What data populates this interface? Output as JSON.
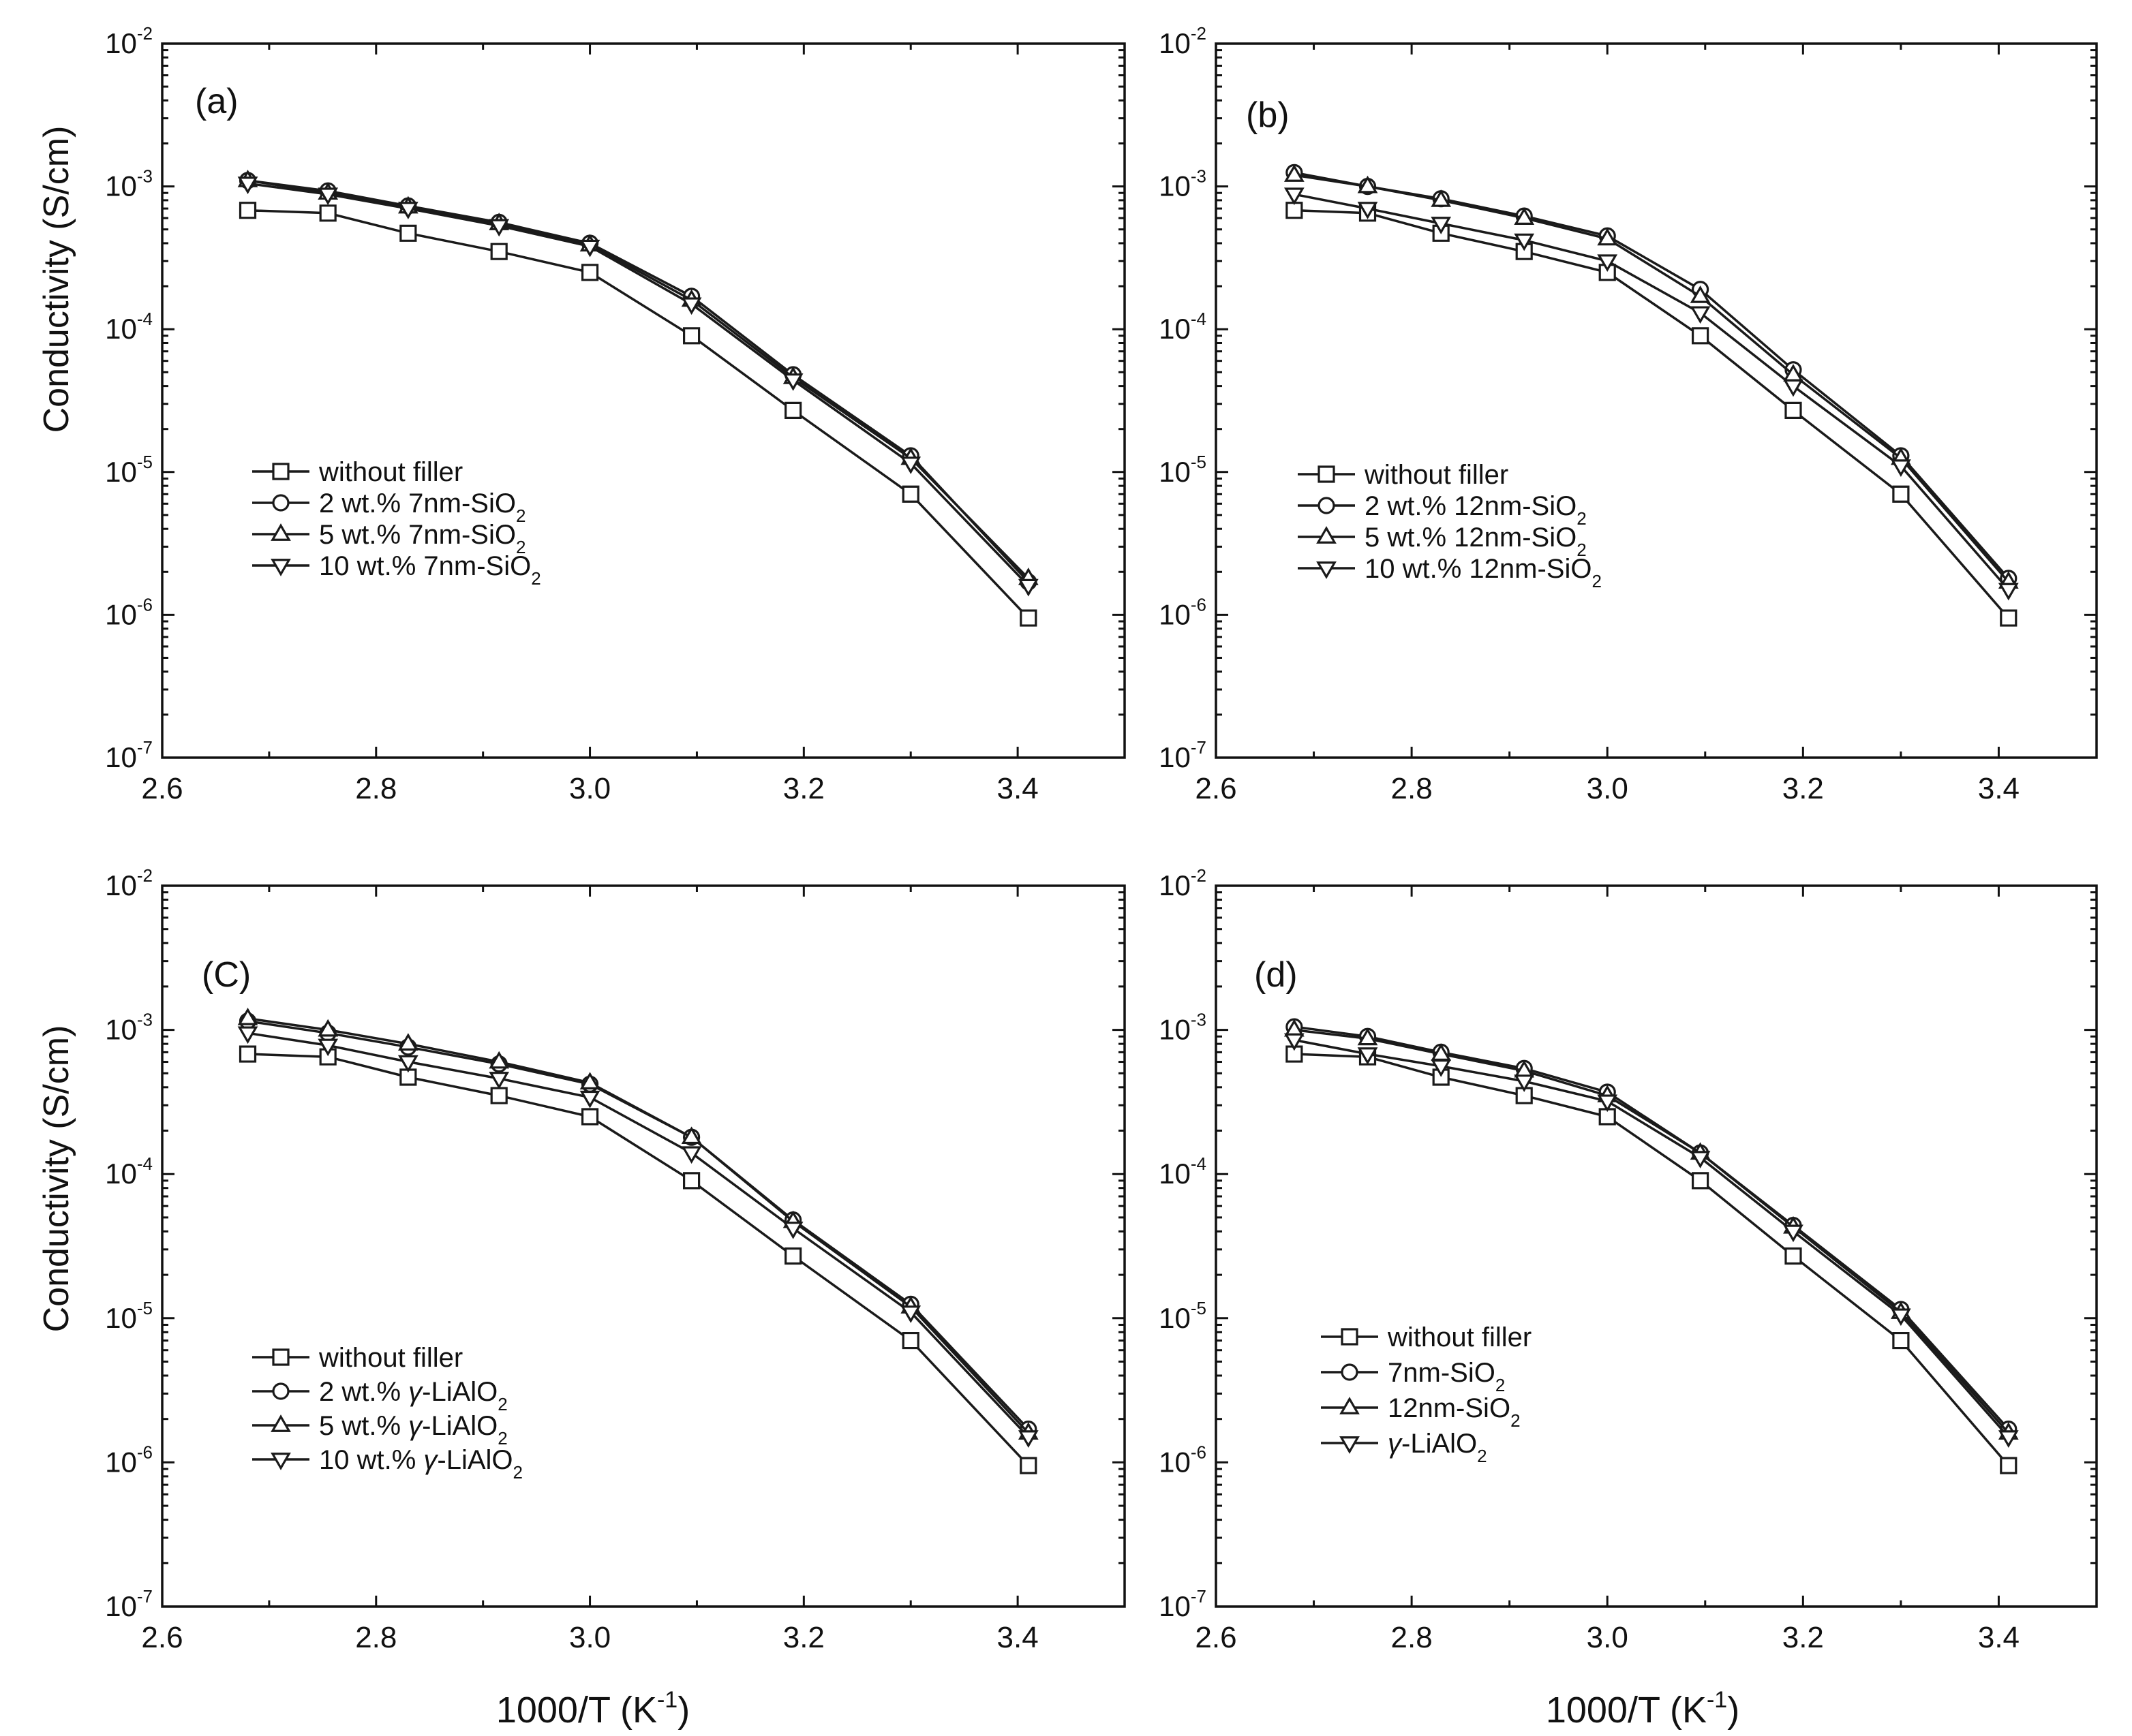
{
  "figure": {
    "xlabel": "1000/T (K",
    "xlabel_sup": "-1",
    "xlabel_close": ")",
    "ylabel": "Conductivity (S/cm)"
  },
  "chart_data": [
    {
      "type": "line",
      "panel_label": "(a)",
      "x": [
        2.68,
        2.755,
        2.83,
        2.915,
        3.0,
        3.095,
        3.19,
        3.3,
        3.41
      ],
      "xlim": [
        2.6,
        3.5
      ],
      "xticks": [
        2.6,
        2.8,
        3.0,
        3.2,
        3.4
      ],
      "xtick_labels": [
        "2.6",
        "2.8",
        "3.0",
        "3.2",
        "3.4"
      ],
      "yscale": "log",
      "ylim": [
        1e-07,
        0.01
      ],
      "ytick_labels": [
        {
          "base": "10",
          "exp": "-2"
        },
        {
          "base": "10",
          "exp": "-3"
        },
        {
          "base": "10",
          "exp": "-4"
        },
        {
          "base": "10",
          "exp": "-5"
        },
        {
          "base": "10",
          "exp": "-6"
        },
        {
          "base": "10",
          "exp": "-7"
        }
      ],
      "xlabel": "",
      "ylabel": "Conductivity (S/cm)",
      "series": [
        {
          "name": "without filler",
          "marker": "square",
          "legend_parts": [
            {
              "t": "without filler"
            }
          ],
          "values": [
            0.00068,
            0.00065,
            0.00047,
            0.00035,
            0.00025,
            9e-05,
            2.7e-05,
            7e-06,
            9.5e-07
          ]
        },
        {
          "name": "2 wt.% 7nm-SiO2",
          "marker": "circle",
          "legend_parts": [
            {
              "t": "2 wt.% 7nm-SiO"
            },
            {
              "t": "2",
              "sub": true
            }
          ],
          "values": [
            0.0011,
            0.00093,
            0.00073,
            0.00056,
            0.0004,
            0.00017,
            4.8e-05,
            1.3e-05,
            1.7e-06
          ]
        },
        {
          "name": "5 wt.% 7nm-SiO2",
          "marker": "triangle-up",
          "legend_parts": [
            {
              "t": "5 wt.% 7nm-SiO"
            },
            {
              "t": "2",
              "sub": true
            }
          ],
          "values": [
            0.0011,
            0.0009,
            0.00072,
            0.00055,
            0.00039,
            0.00016,
            4.6e-05,
            1.25e-05,
            1.8e-06
          ]
        },
        {
          "name": "10 wt.% 7nm-SiO2",
          "marker": "triangle-down",
          "legend_parts": [
            {
              "t": "10 wt.% 7nm-SiO"
            },
            {
              "t": "2",
              "sub": true
            }
          ],
          "values": [
            0.00105,
            0.00088,
            0.0007,
            0.00053,
            0.00038,
            0.00015,
            4.4e-05,
            1.15e-05,
            1.6e-06
          ]
        }
      ]
    },
    {
      "type": "line",
      "panel_label": "(b)",
      "x": [
        2.68,
        2.755,
        2.83,
        2.915,
        3.0,
        3.095,
        3.19,
        3.3,
        3.41
      ],
      "xlim": [
        2.6,
        3.5
      ],
      "xticks": [
        2.6,
        2.8,
        3.0,
        3.2,
        3.4
      ],
      "xtick_labels": [
        "2.6",
        "2.8",
        "3.0",
        "3.2",
        "3.4"
      ],
      "yscale": "log",
      "ylim": [
        1e-07,
        0.01
      ],
      "ytick_labels": [
        {
          "base": "10",
          "exp": "-2"
        },
        {
          "base": "10",
          "exp": "-3"
        },
        {
          "base": "10",
          "exp": "-4"
        },
        {
          "base": "10",
          "exp": "-5"
        },
        {
          "base": "10",
          "exp": "-6"
        },
        {
          "base": "10",
          "exp": "-7"
        }
      ],
      "xlabel": "",
      "ylabel": "",
      "series": [
        {
          "name": "without filler",
          "marker": "square",
          "legend_parts": [
            {
              "t": "without filler"
            }
          ],
          "values": [
            0.00068,
            0.00065,
            0.00047,
            0.00035,
            0.00025,
            9e-05,
            2.7e-05,
            7e-06,
            9.5e-07
          ]
        },
        {
          "name": "2 wt.% 12nm-SiO2",
          "marker": "circle",
          "legend_parts": [
            {
              "t": "2 wt.% 12nm-SiO"
            },
            {
              "t": "2",
              "sub": true
            }
          ],
          "values": [
            0.00125,
            0.001,
            0.00082,
            0.00062,
            0.00045,
            0.00019,
            5.2e-05,
            1.3e-05,
            1.8e-06
          ]
        },
        {
          "name": "5 wt.% 12nm-SiO2",
          "marker": "triangle-up",
          "legend_parts": [
            {
              "t": "5 wt.% 12nm-SiO"
            },
            {
              "t": "2",
              "sub": true
            }
          ],
          "values": [
            0.0012,
            0.001,
            0.0008,
            0.0006,
            0.00043,
            0.00017,
            4.8e-05,
            1.25e-05,
            1.7e-06
          ]
        },
        {
          "name": "10 wt.% 12nm-SiO2",
          "marker": "triangle-down",
          "legend_parts": [
            {
              "t": "10 wt.% 12nm-SiO"
            },
            {
              "t": "2",
              "sub": true
            }
          ],
          "values": [
            0.00088,
            0.0007,
            0.00055,
            0.00042,
            0.0003,
            0.00013,
            4e-05,
            1.1e-05,
            1.5e-06
          ]
        }
      ]
    },
    {
      "type": "line",
      "panel_label": "(C)",
      "x": [
        2.68,
        2.755,
        2.83,
        2.915,
        3.0,
        3.095,
        3.19,
        3.3,
        3.41
      ],
      "xlim": [
        2.6,
        3.5
      ],
      "xticks": [
        2.6,
        2.8,
        3.0,
        3.2,
        3.4
      ],
      "xtick_labels": [
        "2.6",
        "2.8",
        "3.0",
        "3.2",
        "3.4"
      ],
      "yscale": "log",
      "ylim": [
        1e-07,
        0.01
      ],
      "ytick_labels": [
        {
          "base": "10",
          "exp": "-2"
        },
        {
          "base": "10",
          "exp": "-3"
        },
        {
          "base": "10",
          "exp": "-4"
        },
        {
          "base": "10",
          "exp": "-5"
        },
        {
          "base": "10",
          "exp": "-6"
        },
        {
          "base": "10",
          "exp": "-7"
        }
      ],
      "xlabel": "1000/T (K-1)",
      "ylabel": "Conductivity (S/cm)",
      "series": [
        {
          "name": "without filler",
          "marker": "square",
          "legend_parts": [
            {
              "t": "without filler"
            }
          ],
          "values": [
            0.00068,
            0.00065,
            0.00047,
            0.00035,
            0.00025,
            9e-05,
            2.7e-05,
            7e-06,
            9.5e-07
          ]
        },
        {
          "name": "2 wt.% γ-LiAlO2",
          "marker": "circle",
          "legend_parts": [
            {
              "t": "2 wt.% "
            },
            {
              "t": "γ",
              "italic": true
            },
            {
              "t": "-LiAlO"
            },
            {
              "t": "2",
              "sub": true
            }
          ],
          "values": [
            0.00115,
            0.00095,
            0.00076,
            0.00058,
            0.00042,
            0.00018,
            4.8e-05,
            1.25e-05,
            1.7e-06
          ]
        },
        {
          "name": "5 wt.% γ-LiAlO2",
          "marker": "triangle-up",
          "legend_parts": [
            {
              "t": "5 wt.% "
            },
            {
              "t": "γ",
              "italic": true
            },
            {
              "t": "-LiAlO"
            },
            {
              "t": "2",
              "sub": true
            }
          ],
          "values": [
            0.0012,
            0.001,
            0.0008,
            0.0006,
            0.00043,
            0.00018,
            4.7e-05,
            1.2e-05,
            1.6e-06
          ]
        },
        {
          "name": "10 wt.% γ-LiAlO2",
          "marker": "triangle-down",
          "legend_parts": [
            {
              "t": "10 wt.% "
            },
            {
              "t": "γ",
              "italic": true
            },
            {
              "t": "-LiAlO"
            },
            {
              "t": "2",
              "sub": true
            }
          ],
          "values": [
            0.00095,
            0.00078,
            0.0006,
            0.00046,
            0.00034,
            0.00014,
            4.2e-05,
            1.1e-05,
            1.5e-06
          ]
        }
      ]
    },
    {
      "type": "line",
      "panel_label": "(d)",
      "x": [
        2.68,
        2.755,
        2.83,
        2.915,
        3.0,
        3.095,
        3.19,
        3.3,
        3.41
      ],
      "xlim": [
        2.6,
        3.5
      ],
      "xticks": [
        2.6,
        2.8,
        3.0,
        3.2,
        3.4
      ],
      "xtick_labels": [
        "2.6",
        "2.8",
        "3.0",
        "3.2",
        "3.4"
      ],
      "yscale": "log",
      "ylim": [
        1e-07,
        0.01
      ],
      "ytick_labels": [
        {
          "base": "10",
          "exp": "-2"
        },
        {
          "base": "10",
          "exp": "-3"
        },
        {
          "base": "10",
          "exp": "-4"
        },
        {
          "base": "10",
          "exp": "-5"
        },
        {
          "base": "10",
          "exp": "-6"
        },
        {
          "base": "10",
          "exp": "-7"
        }
      ],
      "xlabel": "1000/T (K-1)",
      "ylabel": "",
      "series": [
        {
          "name": "without filler",
          "marker": "square",
          "legend_parts": [
            {
              "t": "without filler"
            }
          ],
          "values": [
            0.00068,
            0.00065,
            0.00047,
            0.00035,
            0.00025,
            9e-05,
            2.7e-05,
            7e-06,
            9.5e-07
          ]
        },
        {
          "name": "7nm-SiO2",
          "marker": "circle",
          "legend_parts": [
            {
              "t": "7nm-SiO"
            },
            {
              "t": "2",
              "sub": true
            }
          ],
          "values": [
            0.00105,
            0.0009,
            0.0007,
            0.00054,
            0.00037,
            0.00014,
            4.4e-05,
            1.15e-05,
            1.7e-06
          ]
        },
        {
          "name": "12nm-SiO2",
          "marker": "triangle-up",
          "legend_parts": [
            {
              "t": "12nm-SiO"
            },
            {
              "t": "2",
              "sub": true
            }
          ],
          "values": [
            0.001,
            0.00087,
            0.00068,
            0.00052,
            0.00035,
            0.00014,
            4.3e-05,
            1.1e-05,
            1.6e-06
          ]
        },
        {
          "name": "γ-LiAlO2",
          "marker": "triangle-down",
          "legend_parts": [
            {
              "t": "γ",
              "italic": true
            },
            {
              "t": "-LiAlO"
            },
            {
              "t": "2",
              "sub": true
            }
          ],
          "values": [
            0.00085,
            0.00068,
            0.00056,
            0.00044,
            0.00032,
            0.00013,
            4e-05,
            1.05e-05,
            1.5e-06
          ]
        }
      ]
    }
  ]
}
